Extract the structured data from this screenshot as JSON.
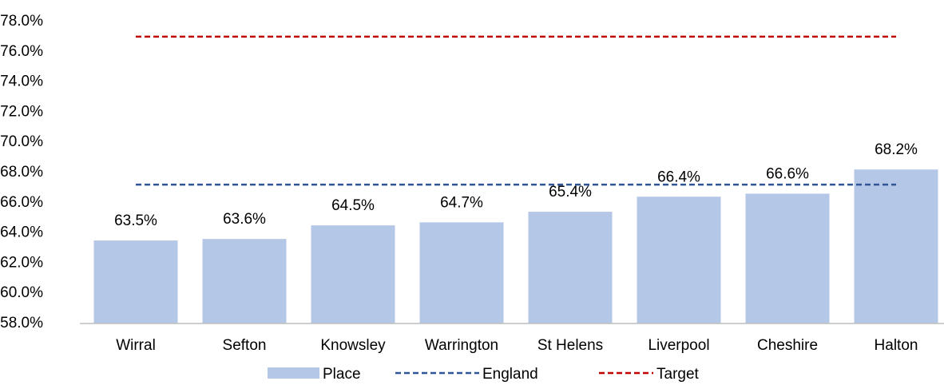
{
  "chart_data": {
    "type": "bar",
    "categories": [
      "Wirral",
      "Sefton",
      "Knowsley",
      "Warrington",
      "St Helens",
      "Liverpool",
      "Cheshire",
      "Halton"
    ],
    "series": [
      {
        "name": "Place",
        "type": "bar",
        "color": "#b4c7e7",
        "values": [
          63.5,
          63.6,
          64.5,
          64.7,
          65.4,
          66.4,
          66.6,
          68.2
        ],
        "value_labels": [
          "63.5%",
          "63.6%",
          "64.5%",
          "64.7%",
          "65.4%",
          "66.4%",
          "66.6%",
          "68.2%"
        ]
      },
      {
        "name": "England",
        "type": "line",
        "color": "#2f5597",
        "values": [
          67.2,
          67.2,
          67.2,
          67.2,
          67.2,
          67.2,
          67.2,
          67.2
        ]
      },
      {
        "name": "Target",
        "type": "line",
        "color": "#c00000",
        "values": [
          77,
          77,
          77,
          77,
          77,
          77,
          77,
          77
        ]
      }
    ],
    "ylim": [
      58,
      78
    ],
    "yticks": [
      {
        "value": 58,
        "label": "58.0%"
      },
      {
        "value": 60,
        "label": "60.0%"
      },
      {
        "value": 62,
        "label": "62.0%"
      },
      {
        "value": 64,
        "label": "64.0%"
      },
      {
        "value": 66,
        "label": "66.0%"
      },
      {
        "value": 68,
        "label": "68.0%"
      },
      {
        "value": 70,
        "label": "70.0%"
      },
      {
        "value": 72,
        "label": "72.0%"
      },
      {
        "value": 74,
        "label": "74.0%"
      },
      {
        "value": 76,
        "label": "76.0%"
      },
      {
        "value": 78,
        "label": "78.0%"
      }
    ],
    "legend": "bottom"
  }
}
